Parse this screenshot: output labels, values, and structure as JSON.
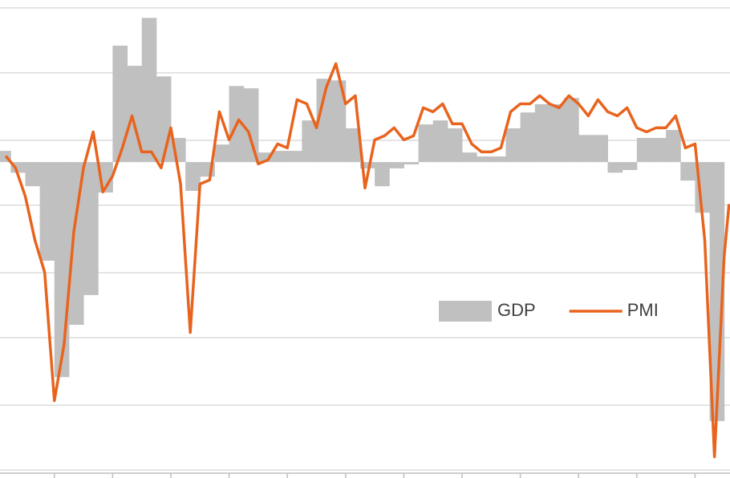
{
  "chart_data": {
    "type": "combo",
    "xlim": [
      -11.2,
      139.2
    ],
    "xticks": [
      0,
      12,
      24,
      36,
      48,
      60,
      72,
      84,
      96,
      108,
      120,
      132
    ],
    "ylim": [
      26.1,
      62.2
    ],
    "yticks": [
      26.7,
      31.6,
      36.7,
      41.6,
      46.7,
      51.6,
      56.7,
      61.6
    ],
    "y2lim": [
      -9.55,
      4.9
    ],
    "grid": true,
    "legend": "right",
    "series": [
      {
        "name": "GDP",
        "type": "bar",
        "axis": "y2",
        "color": "#c0c0c0",
        "x": [
          -12,
          -9,
          -6,
          -3,
          0,
          3,
          6,
          9,
          12,
          15,
          18,
          21,
          24,
          27,
          30,
          33,
          36,
          39,
          42,
          45,
          48,
          51,
          54,
          57,
          60,
          63,
          66,
          69,
          72,
          75,
          78,
          81,
          84,
          87,
          90,
          93,
          96,
          99,
          102,
          105,
          108,
          111,
          114,
          117,
          120,
          123,
          126,
          129,
          132,
          135
        ],
        "values": [
          0.34,
          -0.32,
          -0.73,
          -2.98,
          -6.5,
          -4.92,
          -4.02,
          -0.92,
          3.52,
          2.91,
          4.36,
          2.59,
          0.73,
          -0.87,
          -0.44,
          0.53,
          2.3,
          2.23,
          0.29,
          0.34,
          0.34,
          1.26,
          2.52,
          2.47,
          1.02,
          -0.19,
          -0.73,
          -0.19,
          -0.07,
          1.14,
          1.26,
          1.02,
          0.29,
          0.17,
          0.17,
          1.02,
          1.5,
          1.75,
          1.75,
          1.94,
          0.82,
          0.82,
          -0.32,
          -0.24,
          0.73,
          0.73,
          0.97,
          -0.56,
          -1.53,
          -7.83
        ]
      },
      {
        "name": "PMI",
        "type": "line",
        "color": "#e8641e",
        "x": [
          -10,
          -8,
          -6,
          -4,
          -2,
          0,
          2,
          4,
          6,
          8,
          10,
          12,
          14,
          16,
          18,
          20,
          22,
          24,
          26,
          28,
          30,
          32,
          34,
          36,
          38,
          40,
          42,
          44,
          46,
          48,
          50,
          52,
          54,
          56,
          58,
          60,
          62,
          64,
          66,
          68,
          70,
          72,
          74,
          76,
          78,
          80,
          82,
          84,
          86,
          88,
          90,
          92,
          94,
          96,
          98,
          100,
          102,
          104,
          106,
          108,
          110,
          112,
          114,
          116,
          118,
          120,
          122,
          124,
          126,
          128,
          130,
          132,
          134,
          136,
          138,
          139
        ],
        "values": [
          50.42,
          49.52,
          47.39,
          44.06,
          41.64,
          31.94,
          36.18,
          44.67,
          49.52,
          52.24,
          47.7,
          48.91,
          51.03,
          53.45,
          50.73,
          50.73,
          49.52,
          52.55,
          48.3,
          37.09,
          48.3,
          48.61,
          53.76,
          51.64,
          53.15,
          52.24,
          49.82,
          50.12,
          51.33,
          51.03,
          54.67,
          54.36,
          52.55,
          55.58,
          57.39,
          54.36,
          54.97,
          48.0,
          51.64,
          51.94,
          52.55,
          51.64,
          51.94,
          54.06,
          53.76,
          54.36,
          52.85,
          52.85,
          51.33,
          50.73,
          50.73,
          51.03,
          53.76,
          54.36,
          54.36,
          54.97,
          54.36,
          54.06,
          54.97,
          54.36,
          53.45,
          54.67,
          53.76,
          53.45,
          54.06,
          52.55,
          52.24,
          52.55,
          52.55,
          53.45,
          51.03,
          51.33,
          44.06,
          27.7,
          42.85,
          46.79
        ]
      }
    ]
  }
}
